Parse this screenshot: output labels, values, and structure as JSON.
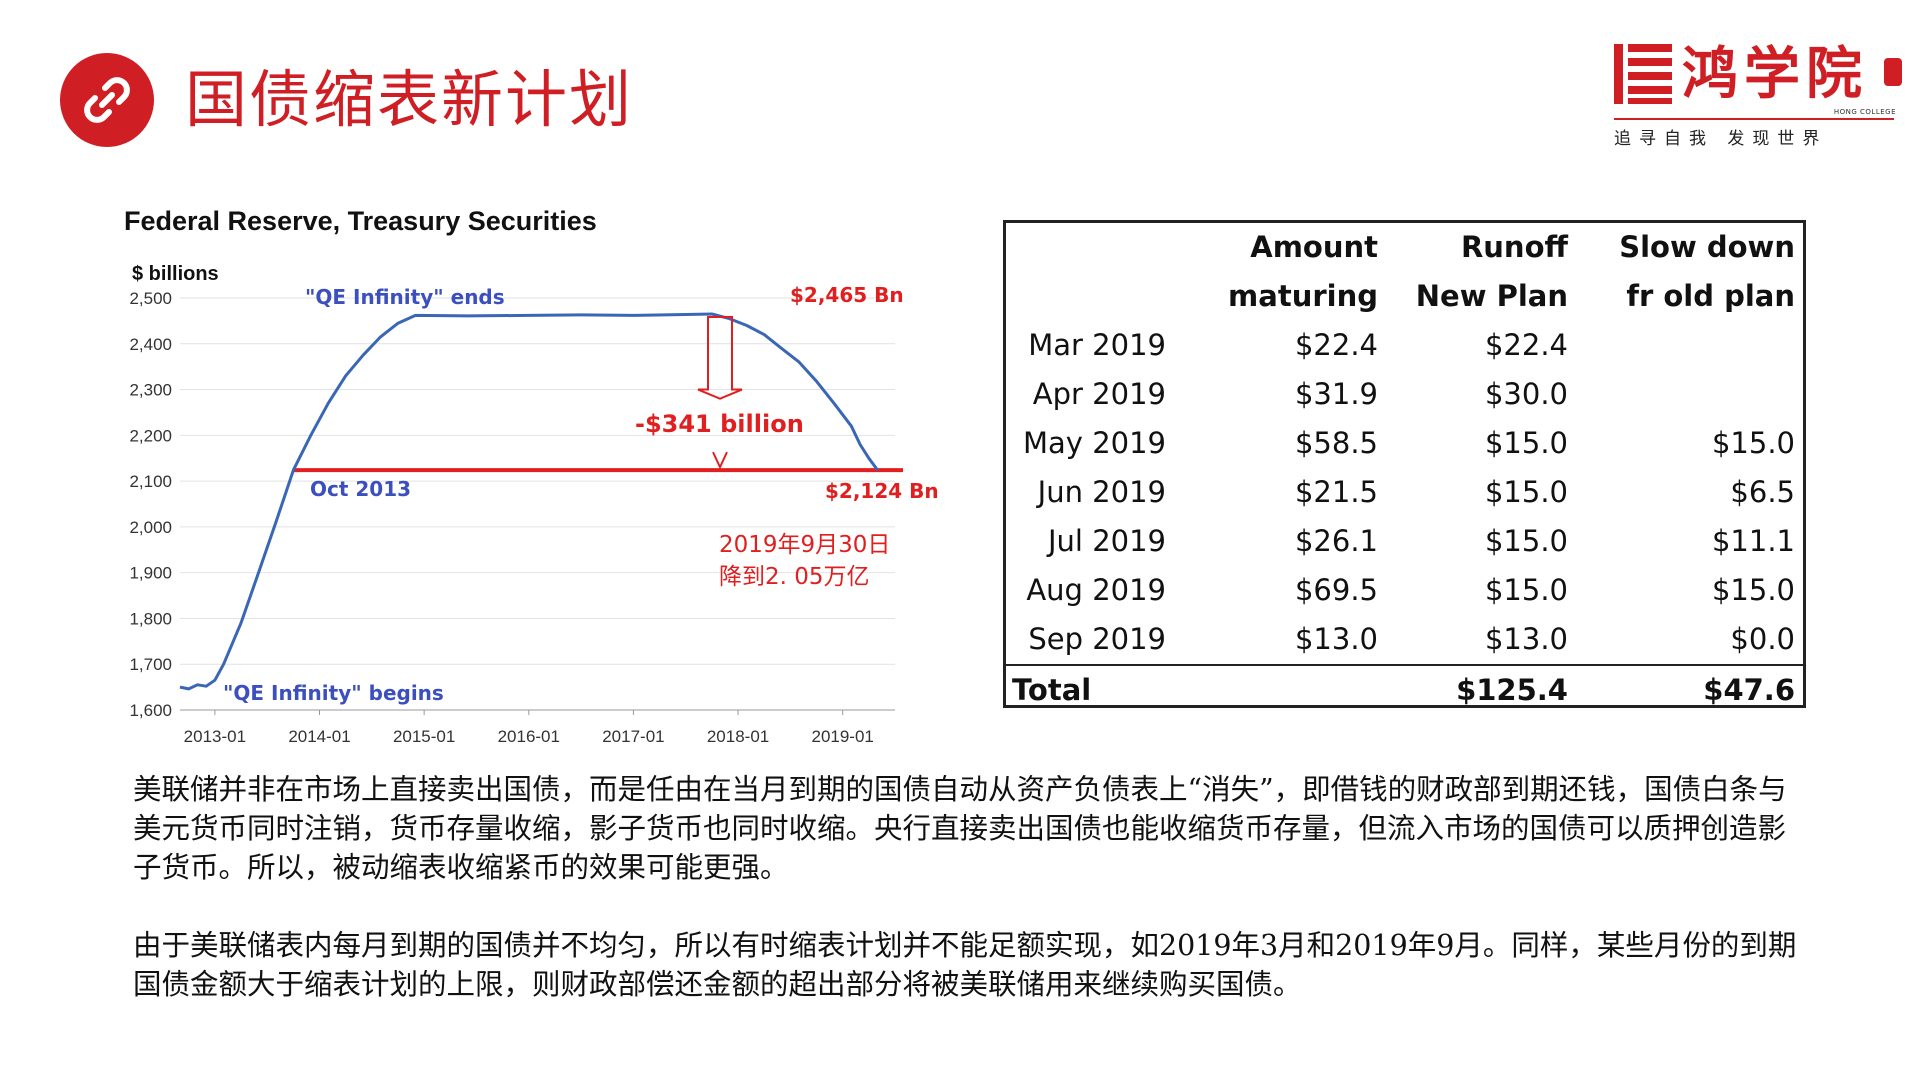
{
  "header": {
    "title": "国债缩表新计划",
    "icon": "link-icon",
    "accent_color": "#cf1f24"
  },
  "logo": {
    "name": "鸿学院",
    "english": "HONG COLLEGE",
    "motto": "追寻自我 发现世界"
  },
  "chart_data": {
    "type": "line",
    "title": "Federal Reserve, Treasury Securities",
    "ylabel": "$ billions",
    "xlabel": "",
    "ylim": [
      1600,
      2500
    ],
    "yticks": [
      "2,500",
      "2,400",
      "2,300",
      "2,200",
      "2,100",
      "2,000",
      "1,900",
      "1,800",
      "1,700",
      "1,600"
    ],
    "xticks": [
      "2013-01",
      "2014-01",
      "2015-01",
      "2016-01",
      "2017-01",
      "2018-01",
      "2019-01"
    ],
    "series": [
      {
        "color": "#3a67b5",
        "points": [
          [
            "2012-09",
            1650
          ],
          [
            "2012-10",
            1646
          ],
          [
            "2012-11",
            1655
          ],
          [
            "2012-12",
            1652
          ],
          [
            "2013-01",
            1665
          ],
          [
            "2013-02",
            1700
          ],
          [
            "2013-04",
            1790
          ],
          [
            "2013-06",
            1900
          ],
          [
            "2013-08",
            2010
          ],
          [
            "2013-10",
            2124
          ],
          [
            "2013-12",
            2200
          ],
          [
            "2014-02",
            2270
          ],
          [
            "2014-04",
            2330
          ],
          [
            "2014-06",
            2375
          ],
          [
            "2014-08",
            2415
          ],
          [
            "2014-10",
            2445
          ],
          [
            "2014-12",
            2462
          ],
          [
            "2015-06",
            2461
          ],
          [
            "2016-01",
            2462
          ],
          [
            "2016-07",
            2463
          ],
          [
            "2017-01",
            2462
          ],
          [
            "2017-07",
            2464
          ],
          [
            "2017-10",
            2465
          ],
          [
            "2017-12",
            2455
          ],
          [
            "2018-02",
            2440
          ],
          [
            "2018-04",
            2420
          ],
          [
            "2018-06",
            2390
          ],
          [
            "2018-08",
            2360
          ],
          [
            "2018-10",
            2318
          ],
          [
            "2018-12",
            2270
          ],
          [
            "2019-02",
            2220
          ],
          [
            "2019-03",
            2180
          ],
          [
            "2019-04",
            2150
          ],
          [
            "2019-05",
            2124
          ]
        ]
      }
    ],
    "reference_line": {
      "y": 2124,
      "color": "#e02020"
    },
    "annotations": {
      "qe_ends": "\"QE Infinity\" ends",
      "qe_begins": "\"QE Infinity\" begins",
      "peak": "$2,465 Bn",
      "reduction": "-$341 billion",
      "start_label": "Oct 2013",
      "end_value": "$2,124 Bn",
      "note_line1": "2019年9月30日",
      "note_line2": "降到2. 05万亿"
    }
  },
  "table": {
    "headers_row1": [
      "",
      "Amount",
      "Runoff",
      "Slow down"
    ],
    "headers_row2": [
      "",
      "maturing",
      "New Plan",
      "fr old plan"
    ],
    "rows": [
      [
        "Mar 2019",
        "$22.4",
        "$22.4",
        ""
      ],
      [
        "Apr 2019",
        "$31.9",
        "$30.0",
        ""
      ],
      [
        "May 2019",
        "$58.5",
        "$15.0",
        "$15.0"
      ],
      [
        "Jun 2019",
        "$21.5",
        "$15.0",
        "$6.5"
      ],
      [
        "Jul 2019",
        "$26.1",
        "$15.0",
        "$11.1"
      ],
      [
        "Aug 2019",
        "$69.5",
        "$15.0",
        "$15.0"
      ],
      [
        "Sep 2019",
        "$13.0",
        "$13.0",
        "$0.0"
      ]
    ],
    "total": [
      "Total",
      "",
      "$125.4",
      "$47.6"
    ]
  },
  "body": {
    "paragraph1": "美联储并非在市场上直接卖出国债，而是任由在当月到期的国债自动从资产负债表上“消失”，即借钱的财政部到期还钱，国债白条与美元货币同时注销，货币存量收缩，影子货币也同时收缩。央行直接卖出国债也能收缩货币存量，但流入市场的国债可以质押创造影子货币。所以，被动缩表收缩紧币的效果可能更强。",
    "paragraph2": "由于美联储表内每月到期的国债并不均匀，所以有时缩表计划并不能足额实现，如2019年3月和2019年9月。同样，某些月份的到期国债金额大于缩表计划的上限，则财政部偿还金额的超出部分将被美联储用来继续购买国债。"
  }
}
